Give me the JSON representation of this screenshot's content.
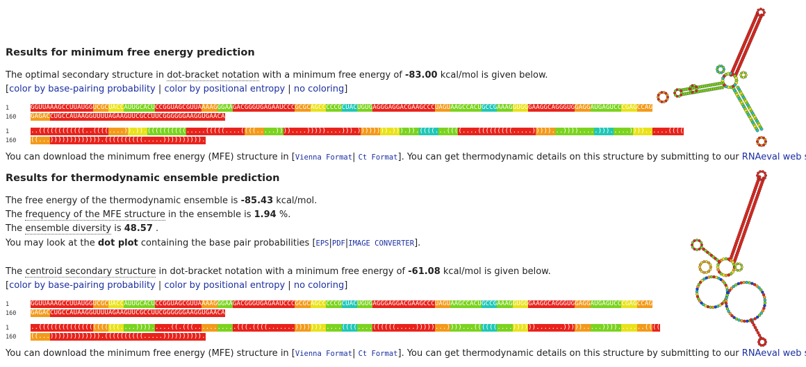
{
  "mfe": {
    "heading": "Results for minimum free energy prediction",
    "intro_pre": "The optimal secondary structure in",
    "intro_link": "dot-bracket notation",
    "intro_mid": "with a minimum free energy of",
    "energy": "-83.00",
    "intro_post": "kcal/mol is given below.",
    "coloring": {
      "open": "[",
      "opt1": "color by base-pairing probability",
      "sep1": "|",
      "opt2": "color by positional entropy",
      "sep2": "|",
      "opt3": "no coloring",
      "close": "]"
    },
    "row_num_1": "1",
    "row_num_2": "160",
    "row_num_3": "1",
    "row_num_4": "160",
    "seq_line1": "GGUUAAAGCCUUAUGGUCGCUACCAUUGCACUCCGGUAGCGUUAAAAGGGAAGACGGGUGAGAAUCCCGCGCAGCCCCCGCUACUGUGAGGGAGGACGAAGCCCUAGUAAGCCACUGCCGAAAGGUGGGAAGGCAGGGUGGAGGAUGAGUCCCGAGCCAG",
    "seq_line2": "GAGACCUGCCAUAAGGUUUUAGAAGUUCGCCUUCGGGGGGAAGGUGAACA",
    "db_line1": "..((((((((((((..((((....)).)).((((((((((.....(((((....((((.....))))....)))))....))).)))))))).))).)).((((...((((....(((((((((.....)))))...)))).....))).....))))......((((",
    "db_line2": "((...))))))))))))).((((((((((.....)))))))))).",
    "download_pre": "You can download the minimum free energy (MFE) structure in [",
    "download_vienna": "Vienna Format",
    "download_sep": "|",
    "download_ct": "Ct Format",
    "download_post": "]. You can get thermodynamic details on this structure by submitting to our",
    "rnaeval_link": "RNAeval web server",
    "period": "."
  },
  "ensemble": {
    "heading": "Results for thermodynamic ensemble prediction",
    "line1_pre": "The free energy of the thermodynamic ensemble is",
    "line1_val": "-85.43",
    "line1_post": "kcal/mol.",
    "line2_pre": "The",
    "line2_link": "frequency of the MFE structure",
    "line2_mid": "in the ensemble is",
    "line2_val": "1.94",
    "line2_post": "%.",
    "line3_link": "ensemble diversity",
    "line3_pre": "The",
    "line3_mid": "is",
    "line3_val": "48.57",
    "line3_post": ".",
    "line4_pre": "You may look at the",
    "line4_bold": "dot plot",
    "line4_mid": "containing the base pair probabilities [",
    "line4_eps": "EPS",
    "line4_pdf": "PDF",
    "line4_img": "IMAGE CONVERTER",
    "line4_sep": "|",
    "line4_post": "].",
    "centroid_pre": "The",
    "centroid_link": "centroid secondary structure",
    "centroid_mid": "in dot-bracket notation with a minimum free energy of",
    "centroid_energy": "-61.08",
    "centroid_post": "kcal/mol is given below.",
    "db_line1": "..(((((((((((((((((((((....)))).....((.(((...........(((.((((.......))))))).....((((....((((((.....)))))...))))...((((((....)))))).......))))).....)))).......((((",
    "db_line2": "((...))))))))))))).((((((((((.....)))))))))).",
    "row_num_1": "1",
    "row_num_2": "160",
    "row_num_3": "1",
    "row_num_4": "160",
    "download_pre": "You can download the minimum free energy (MFE) structure in [",
    "download_vienna": "Vienna Format",
    "download_sep": "|",
    "download_ct": "Ct Format",
    "download_post": "]. You can get thermodynamic details on this structure by submitting to our",
    "rnaeval_link": "RNAeval web server",
    "period": "."
  },
  "colors": {
    "red": "#e8231b",
    "orange": "#f39a1b",
    "yellow": "#e9e21a",
    "green": "#7bd31f",
    "teal": "#21c7b6",
    "blue": "#1840e0",
    "link": "#1a2fa0"
  }
}
